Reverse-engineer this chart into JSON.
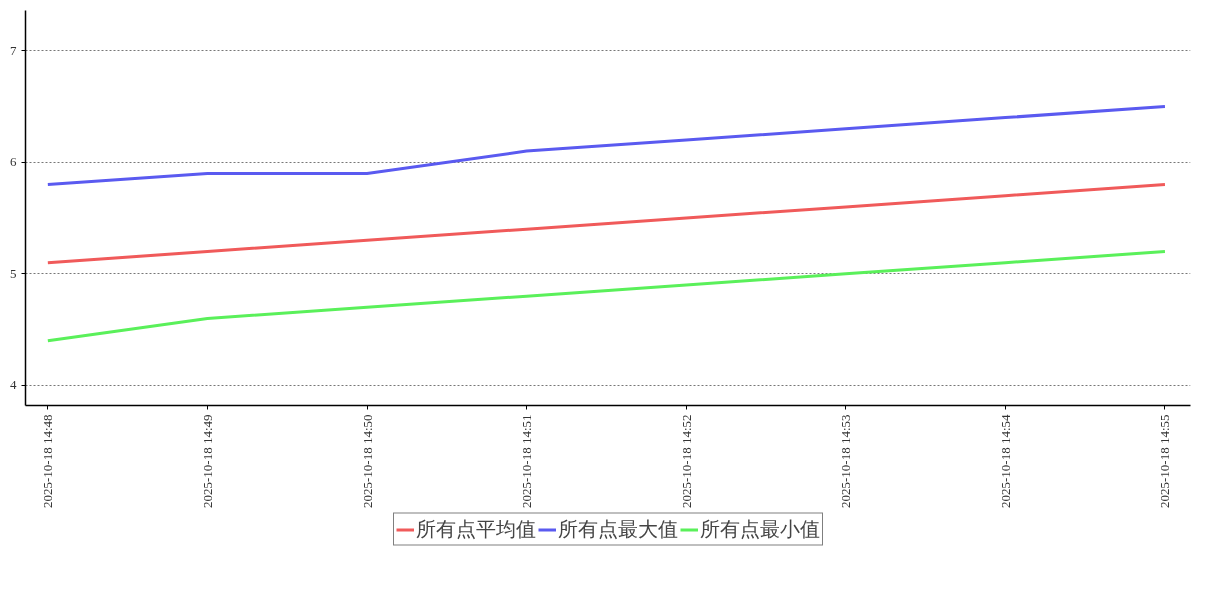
{
  "chart_data": {
    "type": "line",
    "categories": [
      "2025-10-18 14:48",
      "2025-10-18 14:49",
      "2025-10-18 14:50",
      "2025-10-18 14:51",
      "2025-10-18 14:52",
      "2025-10-18 14:53",
      "2025-10-18 14:54",
      "2025-10-18 14:55"
    ],
    "series": [
      {
        "name": "所有点平均值",
        "color": "#f05a5a",
        "values": [
          5.1,
          5.2,
          5.3,
          5.4,
          5.5,
          5.6,
          5.7,
          5.8
        ]
      },
      {
        "name": "所有点最大值",
        "color": "#5a5af0",
        "values": [
          5.8,
          5.9,
          5.9,
          6.1,
          6.2,
          6.3,
          6.4,
          6.5
        ]
      },
      {
        "name": "所有点最小值",
        "color": "#5af05a",
        "values": [
          4.4,
          4.6,
          4.7,
          4.8,
          4.9,
          5.0,
          5.1,
          5.2
        ]
      }
    ],
    "ylim": [
      3.82,
      7.36
    ],
    "yticks": [
      4,
      5,
      6,
      7
    ],
    "grid": "y",
    "legend": "bottom",
    "marker": "none",
    "line_style": "solid"
  }
}
